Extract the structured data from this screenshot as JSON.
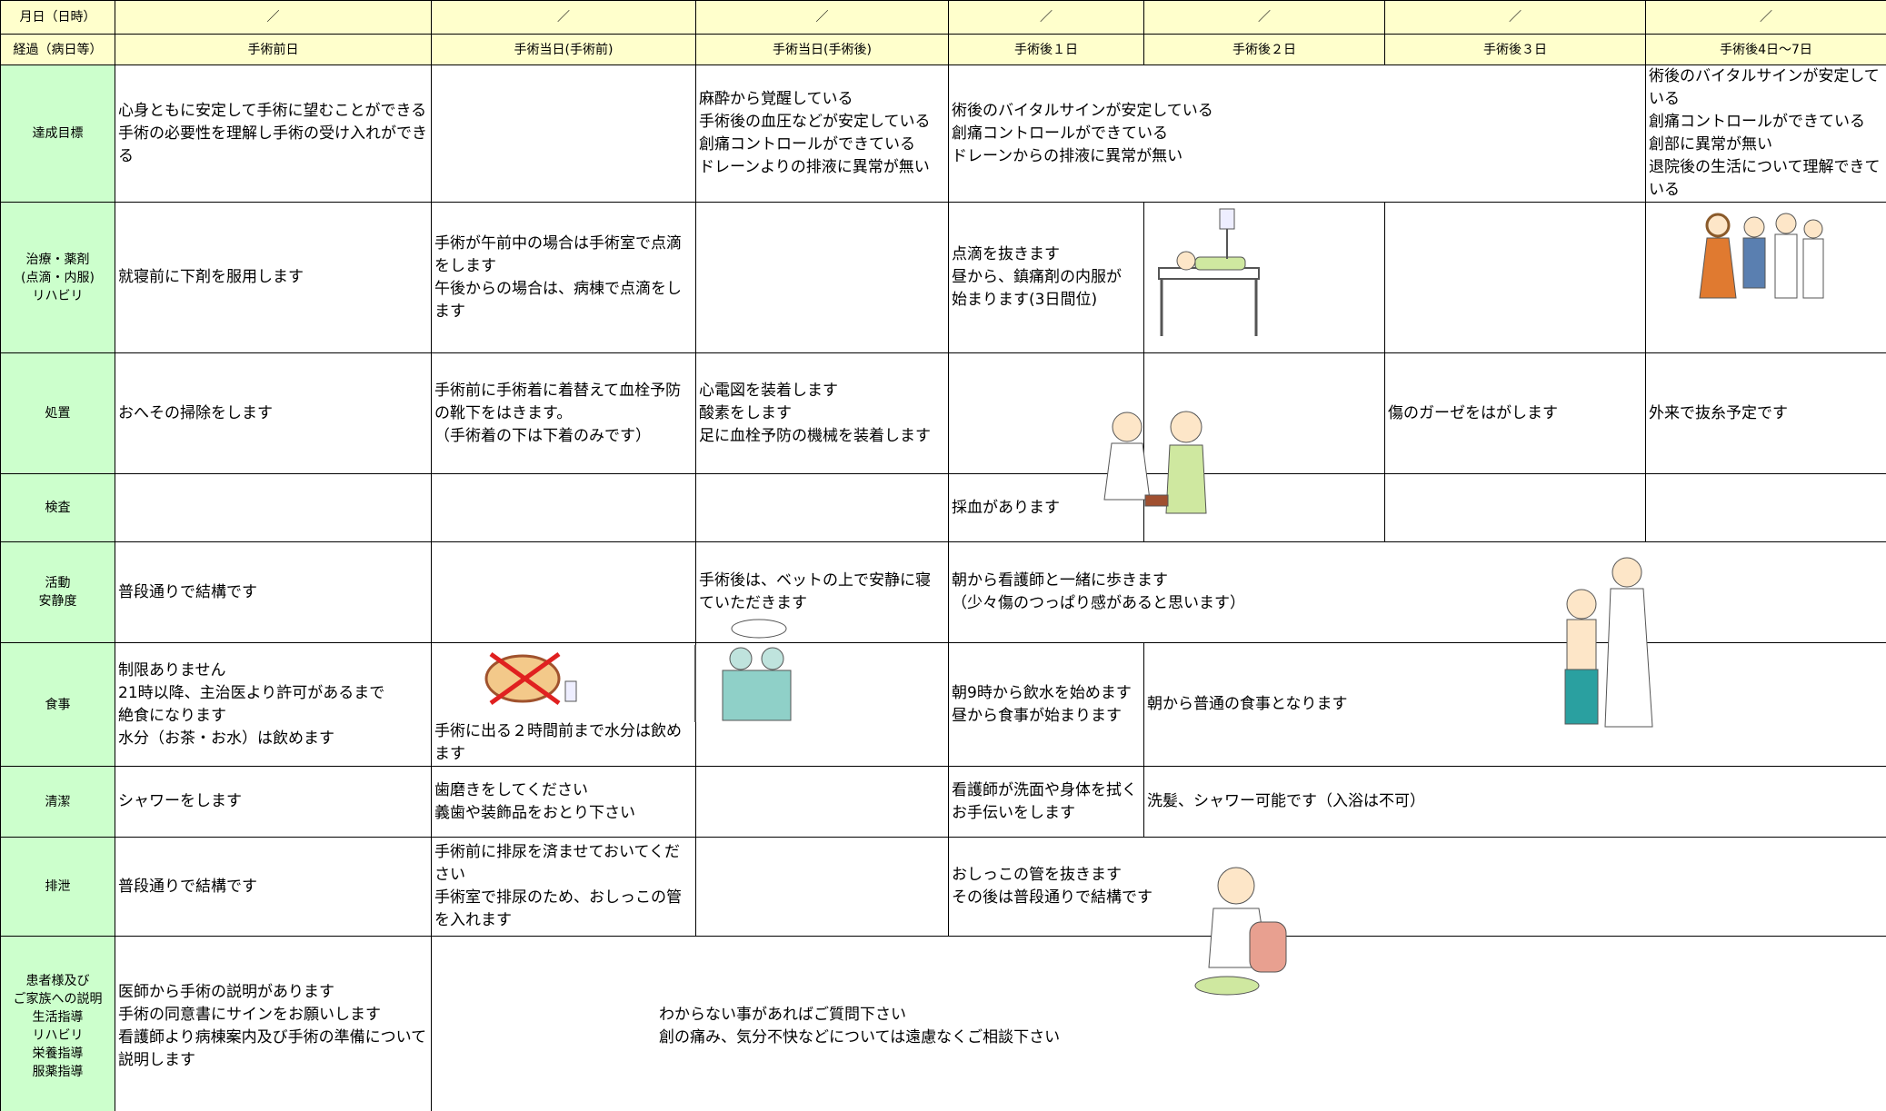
{
  "header": {
    "date_label": "月日（日時）",
    "dates": [
      "／",
      "／",
      "／",
      "／",
      "／",
      "／",
      "／"
    ],
    "progress_label": "経過（病日等）",
    "days": [
      "手術前日",
      "手術当日(手術前)",
      "手術当日(手術後)",
      "手術後１日",
      "手術後２日",
      "手術後３日",
      "手術後4日〜7日"
    ]
  },
  "rows": [
    {
      "label": "達成目標",
      "cells": [
        "心身ともに安定して手術に望むことができる\n手術の必要性を理解し手術の受け入れができる",
        "麻酔から覚醒している\n手術後の血圧などが安定している\n創痛コントロールができている\nドレーンよりの排液に異常が無い",
        "術後のバイタルサインが安定している\n創痛コントロールができている\nドレーンからの排液に異常が無い",
        "術後のバイタルサインが安定している\n創痛コントロールができている\n創部に異常が無い\n退院後の生活について理解できている"
      ]
    },
    {
      "label": "治療・薬剤\n(点滴・内服)\nリハビリ",
      "cells": [
        "就寝前に下剤を服用します",
        "手術が午前中の場合は手術室で点滴をします\n午後からの場合は、病棟で点滴をします",
        "点滴を抜きます\n昼から、鎮痛剤の内服が\n始まります(3日間位)"
      ]
    },
    {
      "label": "処置",
      "cells": [
        "おへその掃除をします",
        "手術前に手術着に着替えて血栓予防の靴下をはきます。\n（手術着の下は下着のみです）",
        "心電図を装着します\n酸素をします\n足に血栓予防の機械を装着します",
        "傷のガーゼをはがします",
        "外来で抜糸予定です"
      ]
    },
    {
      "label": "検査",
      "cells": [
        "採血があります"
      ]
    },
    {
      "label": "活動\n安静度",
      "cells": [
        "普段通りで結構です",
        "手術後は、ベットの上で安静に寝ていただきます",
        "朝から看護師と一緒に歩きます\n（少々傷のつっぱり感があると思います）"
      ]
    },
    {
      "label": "食事",
      "cells": [
        "制限ありません\n21時以降、主治医より許可があるまで\n絶食になります\n水分（お茶・お水）は飲めます",
        "手術に出る２時間前まで水分は飲めます",
        "朝9時から飲水を始めます\n昼から食事が始まります",
        "朝から普通の食事となります"
      ]
    },
    {
      "label": "清潔",
      "cells": [
        "シャワーをします",
        "歯磨きをしてください\n義歯や装飾品をおとり下さい",
        "看護師が洗面や身体を拭く\nお手伝いをします",
        "洗髪、シャワー可能です（入浴は不可）"
      ]
    },
    {
      "label": "排泄",
      "cells": [
        "普段通りで結構です",
        "手術前に排尿を済ませておいてください\n手術室で排尿のため、おしっこの管を入れます",
        "おしっこの管を抜きます\nその後は普段通りで結構です"
      ]
    },
    {
      "label": "患者様及び\nご家族への説明\n生活指導\nリハビリ\n栄養指導\n服薬指導",
      "cells": [
        "医師から手術の説明があります\n手術の同意書にサインをお願いします\n看護師より病棟案内及び手術の準備について説明します",
        "わからない事があればご質問下さい\n創の痛み、気分不快などについては遠慮なくご相談下さい"
      ]
    }
  ]
}
